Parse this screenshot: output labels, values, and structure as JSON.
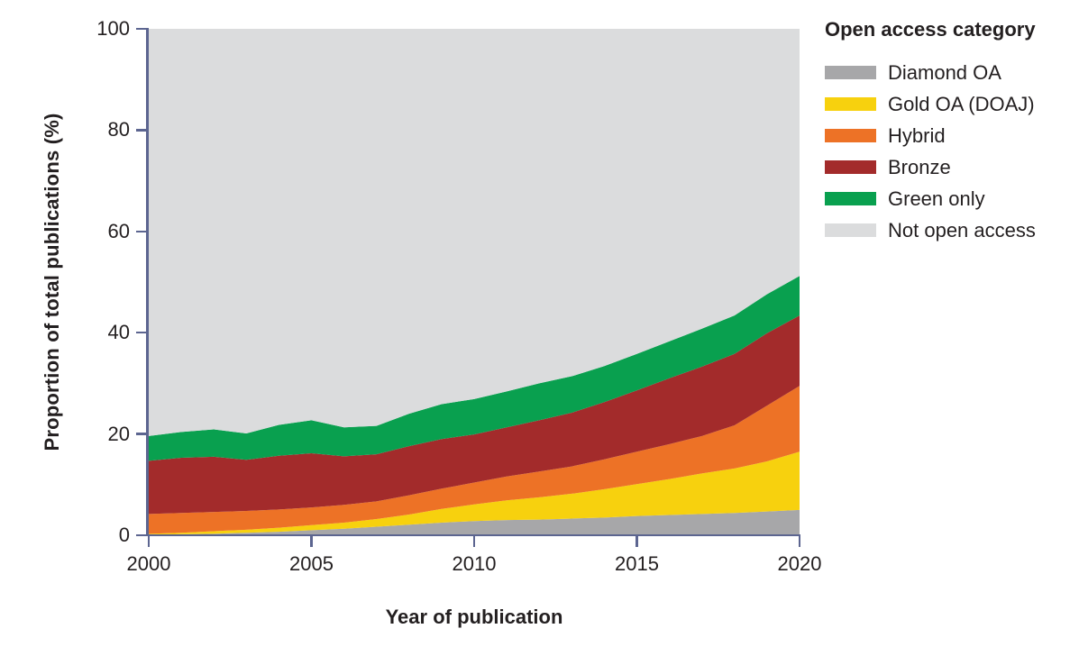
{
  "figure": {
    "background": "#ffffff",
    "text_color": "#231f20",
    "axis_color": "#5c6590"
  },
  "axes": {
    "y_label": "Proportion of total publications (%)",
    "x_label": "Year of publication",
    "y_ticks": [
      0,
      20,
      40,
      60,
      80,
      100
    ],
    "x_ticks": [
      2000,
      2005,
      2010,
      2015,
      2020
    ]
  },
  "legend": {
    "title": "Open access category",
    "items": [
      {
        "label": "Diamond OA",
        "color": "#a7a7a9"
      },
      {
        "label": "Gold OA (DOAJ)",
        "color": "#f7d10e"
      },
      {
        "label": "Hybrid",
        "color": "#ed7226"
      },
      {
        "label": "Bronze",
        "color": "#a32b2b"
      },
      {
        "label": "Green only",
        "color": "#09a04f"
      },
      {
        "label": "Not open access",
        "color": "#dbdcdd"
      }
    ]
  },
  "chart_data": {
    "type": "area",
    "stacked": true,
    "title": "",
    "xlabel": "Year of publication",
    "ylabel": "Proportion of total publications (%)",
    "xlim": [
      2000,
      2020
    ],
    "ylim": [
      0,
      100
    ],
    "grid": false,
    "legend_position": "right",
    "x": [
      2000,
      2001,
      2002,
      2003,
      2004,
      2005,
      2006,
      2007,
      2008,
      2009,
      2010,
      2011,
      2012,
      2013,
      2014,
      2015,
      2016,
      2017,
      2018,
      2019,
      2020
    ],
    "series": [
      {
        "id": "diamond-oa",
        "name": "Diamond OA",
        "color": "#a7a7a9",
        "values": [
          0.1,
          0.2,
          0.3,
          0.5,
          0.7,
          1.0,
          1.3,
          1.7,
          2.1,
          2.5,
          2.8,
          3.0,
          3.1,
          3.3,
          3.5,
          3.8,
          4.0,
          4.2,
          4.4,
          4.7,
          5.0
        ]
      },
      {
        "id": "gold-oa-doaj",
        "name": "Gold OA (DOAJ)",
        "color": "#f7d10e",
        "values": [
          0.2,
          0.3,
          0.5,
          0.6,
          0.8,
          1.0,
          1.2,
          1.5,
          2.0,
          2.7,
          3.3,
          3.9,
          4.4,
          4.9,
          5.6,
          6.3,
          7.1,
          8.0,
          8.8,
          9.9,
          11.5
        ]
      },
      {
        "id": "hybrid",
        "name": "Hybrid",
        "color": "#ed7226",
        "values": [
          3.9,
          3.9,
          3.8,
          3.7,
          3.6,
          3.5,
          3.5,
          3.5,
          3.8,
          4.0,
          4.3,
          4.7,
          5.1,
          5.4,
          5.9,
          6.4,
          6.9,
          7.4,
          8.5,
          11.0,
          13.0
        ]
      },
      {
        "id": "bronze",
        "name": "Bronze",
        "color": "#a32b2b",
        "values": [
          10.5,
          10.9,
          10.9,
          10.1,
          10.6,
          10.7,
          9.6,
          9.3,
          9.7,
          9.8,
          9.5,
          9.7,
          10.1,
          10.6,
          11.3,
          12.1,
          13.0,
          13.7,
          14.1,
          14.3,
          13.9
        ]
      },
      {
        "id": "green-only",
        "name": "Green only",
        "color": "#09a04f",
        "values": [
          4.9,
          5.1,
          5.4,
          5.2,
          6.1,
          6.5,
          5.7,
          5.6,
          6.4,
          6.9,
          7.0,
          7.1,
          7.3,
          7.2,
          7.1,
          7.2,
          7.3,
          7.5,
          7.6,
          7.7,
          7.8
        ]
      },
      {
        "id": "not-open-access",
        "name": "Not open access",
        "color": "#dbdcdd",
        "values": [
          80.4,
          79.6,
          79.1,
          79.9,
          78.2,
          77.3,
          78.7,
          78.4,
          76.0,
          74.1,
          73.1,
          71.6,
          70.0,
          68.6,
          66.6,
          64.2,
          61.7,
          59.2,
          56.6,
          52.4,
          48.9
        ]
      }
    ]
  }
}
